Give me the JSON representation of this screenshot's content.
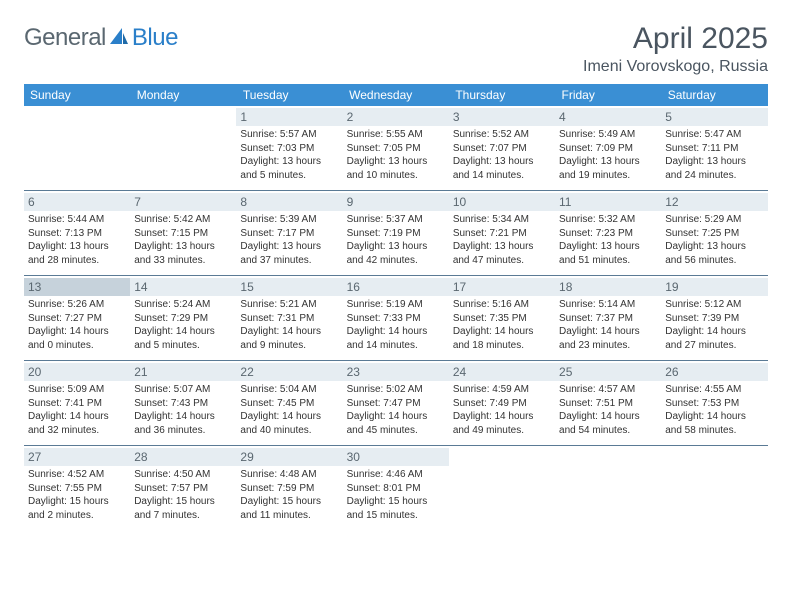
{
  "brand": {
    "name_a": "General",
    "name_b": "Blue"
  },
  "title": "April 2025",
  "location": "Imeni Vorovskogo, Russia",
  "colors": {
    "header_bg": "#3a8fd4",
    "header_text": "#ffffff",
    "daynum_bg": "#e6edf2",
    "daynum_shaded_bg": "#c6d2db",
    "border": "#5a7a95",
    "text": "#333333",
    "logo_gray": "#5a6770",
    "logo_blue": "#2a7fc9"
  },
  "weekdays": [
    "Sunday",
    "Monday",
    "Tuesday",
    "Wednesday",
    "Thursday",
    "Friday",
    "Saturday"
  ],
  "weeks": [
    [
      null,
      null,
      {
        "n": "1",
        "sr": "5:57 AM",
        "ss": "7:03 PM",
        "dh": "13",
        "dm": "5"
      },
      {
        "n": "2",
        "sr": "5:55 AM",
        "ss": "7:05 PM",
        "dh": "13",
        "dm": "10"
      },
      {
        "n": "3",
        "sr": "5:52 AM",
        "ss": "7:07 PM",
        "dh": "13",
        "dm": "14"
      },
      {
        "n": "4",
        "sr": "5:49 AM",
        "ss": "7:09 PM",
        "dh": "13",
        "dm": "19"
      },
      {
        "n": "5",
        "sr": "5:47 AM",
        "ss": "7:11 PM",
        "dh": "13",
        "dm": "24"
      }
    ],
    [
      {
        "n": "6",
        "sr": "5:44 AM",
        "ss": "7:13 PM",
        "dh": "13",
        "dm": "28"
      },
      {
        "n": "7",
        "sr": "5:42 AM",
        "ss": "7:15 PM",
        "dh": "13",
        "dm": "33"
      },
      {
        "n": "8",
        "sr": "5:39 AM",
        "ss": "7:17 PM",
        "dh": "13",
        "dm": "37"
      },
      {
        "n": "9",
        "sr": "5:37 AM",
        "ss": "7:19 PM",
        "dh": "13",
        "dm": "42"
      },
      {
        "n": "10",
        "sr": "5:34 AM",
        "ss": "7:21 PM",
        "dh": "13",
        "dm": "47"
      },
      {
        "n": "11",
        "sr": "5:32 AM",
        "ss": "7:23 PM",
        "dh": "13",
        "dm": "51"
      },
      {
        "n": "12",
        "sr": "5:29 AM",
        "ss": "7:25 PM",
        "dh": "13",
        "dm": "56"
      }
    ],
    [
      {
        "n": "13",
        "sr": "5:26 AM",
        "ss": "7:27 PM",
        "dh": "14",
        "dm": "0",
        "shaded": true
      },
      {
        "n": "14",
        "sr": "5:24 AM",
        "ss": "7:29 PM",
        "dh": "14",
        "dm": "5"
      },
      {
        "n": "15",
        "sr": "5:21 AM",
        "ss": "7:31 PM",
        "dh": "14",
        "dm": "9"
      },
      {
        "n": "16",
        "sr": "5:19 AM",
        "ss": "7:33 PM",
        "dh": "14",
        "dm": "14"
      },
      {
        "n": "17",
        "sr": "5:16 AM",
        "ss": "7:35 PM",
        "dh": "14",
        "dm": "18"
      },
      {
        "n": "18",
        "sr": "5:14 AM",
        "ss": "7:37 PM",
        "dh": "14",
        "dm": "23"
      },
      {
        "n": "19",
        "sr": "5:12 AM",
        "ss": "7:39 PM",
        "dh": "14",
        "dm": "27"
      }
    ],
    [
      {
        "n": "20",
        "sr": "5:09 AM",
        "ss": "7:41 PM",
        "dh": "14",
        "dm": "32"
      },
      {
        "n": "21",
        "sr": "5:07 AM",
        "ss": "7:43 PM",
        "dh": "14",
        "dm": "36"
      },
      {
        "n": "22",
        "sr": "5:04 AM",
        "ss": "7:45 PM",
        "dh": "14",
        "dm": "40"
      },
      {
        "n": "23",
        "sr": "5:02 AM",
        "ss": "7:47 PM",
        "dh": "14",
        "dm": "45"
      },
      {
        "n": "24",
        "sr": "4:59 AM",
        "ss": "7:49 PM",
        "dh": "14",
        "dm": "49"
      },
      {
        "n": "25",
        "sr": "4:57 AM",
        "ss": "7:51 PM",
        "dh": "14",
        "dm": "54"
      },
      {
        "n": "26",
        "sr": "4:55 AM",
        "ss": "7:53 PM",
        "dh": "14",
        "dm": "58"
      }
    ],
    [
      {
        "n": "27",
        "sr": "4:52 AM",
        "ss": "7:55 PM",
        "dh": "15",
        "dm": "2"
      },
      {
        "n": "28",
        "sr": "4:50 AM",
        "ss": "7:57 PM",
        "dh": "15",
        "dm": "7"
      },
      {
        "n": "29",
        "sr": "4:48 AM",
        "ss": "7:59 PM",
        "dh": "15",
        "dm": "11"
      },
      {
        "n": "30",
        "sr": "4:46 AM",
        "ss": "8:01 PM",
        "dh": "15",
        "dm": "15"
      },
      null,
      null,
      null
    ]
  ],
  "labels": {
    "sunrise": "Sunrise:",
    "sunset": "Sunset:",
    "daylight": "Daylight:",
    "hours": "hours",
    "and": "and",
    "minutes": "minutes."
  }
}
